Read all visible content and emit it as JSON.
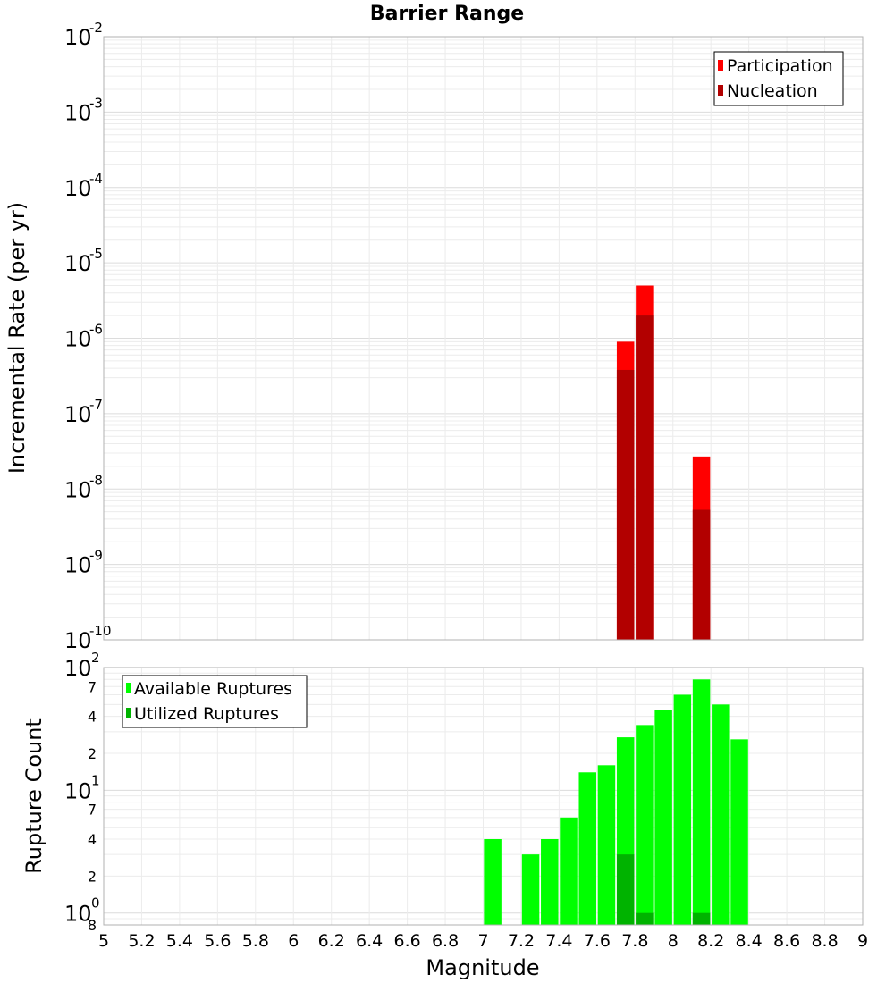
{
  "colors": {
    "participation": "#ff0000",
    "nucleation": "#b20000",
    "available": "#00ff00",
    "utilized": "#00b300",
    "grid_major": "#dcdcdc",
    "grid_minor": "#ececec",
    "frame": "#b0b0b0"
  },
  "chart_data": [
    {
      "type": "bar",
      "title": "Barrier Range",
      "xlabel": "Magnitude",
      "ylabel": "Incremental Rate (per yr)",
      "yscale": "log",
      "ylim": [
        1e-10,
        0.01
      ],
      "xlim": [
        5,
        9
      ],
      "legend_position": "top-right",
      "y_tick_labels": [
        {
          "base": "10",
          "exp": "-2"
        },
        {
          "base": "10",
          "exp": "-3"
        },
        {
          "base": "10",
          "exp": "-4"
        },
        {
          "base": "10",
          "exp": "-5"
        },
        {
          "base": "10",
          "exp": "-6"
        },
        {
          "base": "10",
          "exp": "-7"
        },
        {
          "base": "10",
          "exp": "-8"
        },
        {
          "base": "10",
          "exp": "-9"
        },
        {
          "base": "10",
          "exp": "-10"
        }
      ],
      "series": [
        {
          "name": "Participation",
          "color_key": "participation",
          "points": [
            {
              "x": 7.75,
              "y": 9e-07
            },
            {
              "x": 7.85,
              "y": 5e-06
            },
            {
              "x": 8.15,
              "y": 2.7e-08
            }
          ]
        },
        {
          "name": "Nucleation",
          "color_key": "nucleation",
          "points": [
            {
              "x": 7.75,
              "y": 3.8e-07
            },
            {
              "x": 7.85,
              "y": 2e-06
            },
            {
              "x": 8.15,
              "y": 5.3e-09
            }
          ]
        }
      ]
    },
    {
      "type": "bar",
      "xlabel": "Magnitude",
      "ylabel": "Rupture Count",
      "yscale": "log",
      "ylim": [
        0.8,
        100
      ],
      "xlim": [
        5,
        9
      ],
      "legend_position": "top-left",
      "x_tick_labels": [
        "5",
        "5.2",
        "5.4",
        "5.6",
        "5.8",
        "6",
        "6.2",
        "6.4",
        "6.6",
        "6.8",
        "7",
        "7.2",
        "7.4",
        "7.6",
        "7.8",
        "8",
        "8.2",
        "8.4",
        "8.6",
        "8.8",
        "9"
      ],
      "y_major_labels": [
        {
          "value": 100,
          "base": "10",
          "exp": "2"
        },
        {
          "value": 10,
          "base": "10",
          "exp": "1"
        },
        {
          "value": 1,
          "base": "10",
          "exp": "0"
        }
      ],
      "y_minor_labels": [
        {
          "value": 70,
          "label": "7"
        },
        {
          "value": 40,
          "label": "4"
        },
        {
          "value": 20,
          "label": "2"
        },
        {
          "value": 7,
          "label": "7"
        },
        {
          "value": 4,
          "label": "4"
        },
        {
          "value": 2,
          "label": "2"
        },
        {
          "value": 0.8,
          "label": "8"
        }
      ],
      "series": [
        {
          "name": "Available Ruptures",
          "color_key": "available",
          "points": [
            {
              "x": 7.05,
              "y": 4
            },
            {
              "x": 7.25,
              "y": 3
            },
            {
              "x": 7.35,
              "y": 4
            },
            {
              "x": 7.45,
              "y": 6
            },
            {
              "x": 7.55,
              "y": 14
            },
            {
              "x": 7.65,
              "y": 16
            },
            {
              "x": 7.75,
              "y": 27
            },
            {
              "x": 7.85,
              "y": 34
            },
            {
              "x": 7.95,
              "y": 45
            },
            {
              "x": 8.05,
              "y": 60
            },
            {
              "x": 8.15,
              "y": 80
            },
            {
              "x": 8.25,
              "y": 50
            },
            {
              "x": 8.35,
              "y": 26
            }
          ]
        },
        {
          "name": "Utilized Ruptures",
          "color_key": "utilized",
          "points": [
            {
              "x": 7.75,
              "y": 3
            },
            {
              "x": 7.85,
              "y": 1
            },
            {
              "x": 8.15,
              "y": 1
            }
          ]
        }
      ]
    }
  ]
}
